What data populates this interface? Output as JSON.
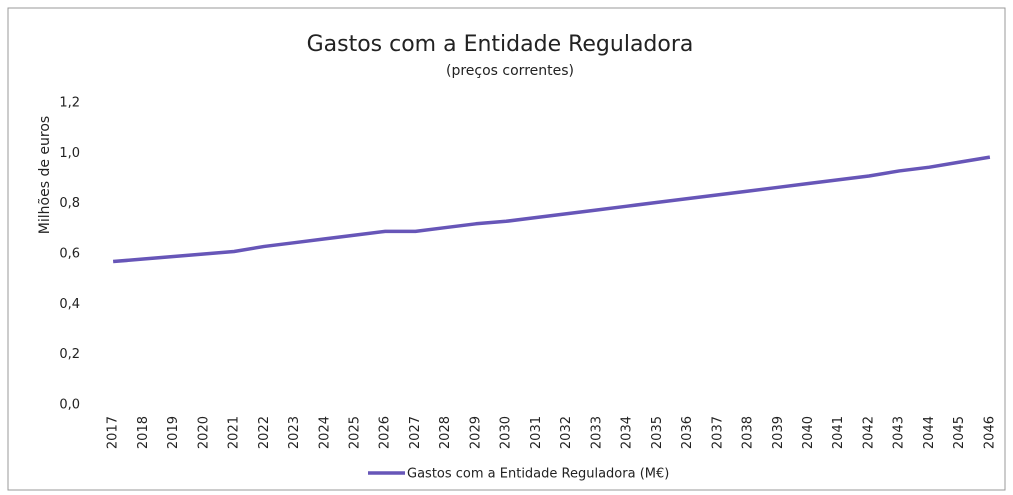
{
  "chart_data": {
    "type": "line",
    "title": "Gastos com a Entidade Reguladora",
    "subtitle": "(preços correntes)",
    "y_label": "Milhões de euros",
    "categories": [
      "2017",
      "2018",
      "2019",
      "2020",
      "2021",
      "2022",
      "2023",
      "2024",
      "2025",
      "2026",
      "2027",
      "2028",
      "2029",
      "2030",
      "2031",
      "2032",
      "2033",
      "2034",
      "2035",
      "2036",
      "2037",
      "2038",
      "2039",
      "2040",
      "2041",
      "2042",
      "2043",
      "2044",
      "2045",
      "2046"
    ],
    "series": [
      {
        "name": "Gastos com a Entidade Reguladora (M€)",
        "color": "#6756b8",
        "values": [
          0.57,
          0.58,
          0.59,
          0.6,
          0.61,
          0.63,
          0.645,
          0.66,
          0.675,
          0.69,
          0.69,
          0.705,
          0.72,
          0.73,
          0.745,
          0.76,
          0.775,
          0.79,
          0.805,
          0.82,
          0.835,
          0.85,
          0.865,
          0.88,
          0.895,
          0.91,
          0.93,
          0.945,
          0.965,
          0.985
        ]
      }
    ],
    "ylim": [
      0,
      1.2
    ],
    "yticks": [
      {
        "value": 0,
        "label": "0,0"
      },
      {
        "value": 0.2,
        "label": "0,2"
      },
      {
        "value": 0.4,
        "label": "0,4"
      },
      {
        "value": 0.6,
        "label": "0,6"
      },
      {
        "value": 0.8,
        "label": "0,8"
      },
      {
        "value": 1.0,
        "label": "1,0"
      },
      {
        "value": 1.2,
        "label": "1,2"
      }
    ],
    "grid": false,
    "legend": "bottom"
  }
}
